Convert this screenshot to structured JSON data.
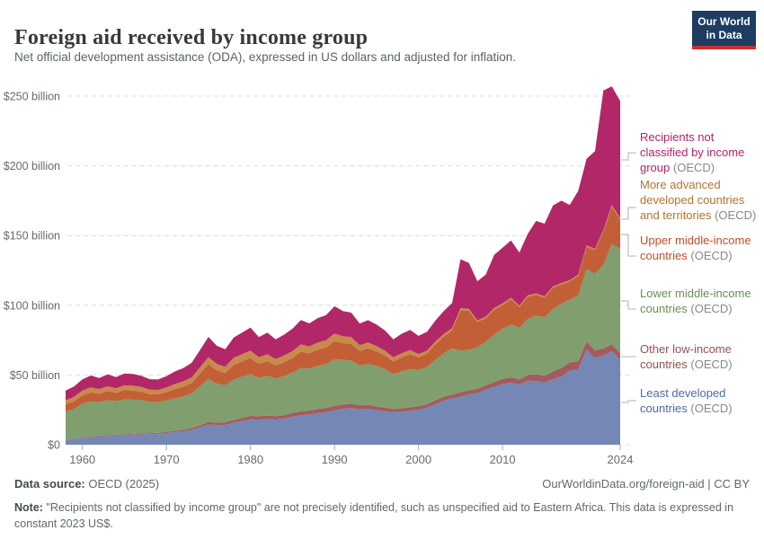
{
  "header": {
    "title": "Foreign aid received by income group",
    "subtitle": "Net official development assistance (ODA), expressed in US dollars and adjusted for inflation.",
    "logo": {
      "line1": "Our World",
      "line2": "in Data",
      "bg_color": "#1d3d63",
      "bar_color": "#d0302f"
    }
  },
  "chart_data": {
    "type": "area",
    "stacked": true,
    "grid": "dashed-horizontal",
    "x_range": [
      1958,
      2024
    ],
    "ylim": [
      0,
      250
    ],
    "yticks": [
      {
        "value": 0,
        "label": "$0"
      },
      {
        "value": 50,
        "label": "$50 billion"
      },
      {
        "value": 100,
        "label": "$100 billion"
      },
      {
        "value": 150,
        "label": "$150 billion"
      },
      {
        "value": 200,
        "label": "$200 billion"
      },
      {
        "value": 250,
        "label": "$250 billion"
      }
    ],
    "xticks": [
      {
        "year": 1960,
        "label": "1960"
      },
      {
        "year": 1970,
        "label": "1970"
      },
      {
        "year": 1980,
        "label": "1980"
      },
      {
        "year": 1990,
        "label": "1990"
      },
      {
        "year": 2000,
        "label": "2000"
      },
      {
        "year": 2010,
        "label": "2010"
      },
      {
        "year": 2024,
        "label": "2024"
      }
    ],
    "years": [
      1958,
      1959,
      1960,
      1961,
      1962,
      1963,
      1964,
      1965,
      1966,
      1967,
      1968,
      1969,
      1970,
      1971,
      1972,
      1973,
      1974,
      1975,
      1976,
      1977,
      1978,
      1979,
      1980,
      1981,
      1982,
      1983,
      1984,
      1985,
      1986,
      1987,
      1988,
      1989,
      1990,
      1991,
      1992,
      1993,
      1994,
      1995,
      1996,
      1997,
      1998,
      1999,
      2000,
      2001,
      2002,
      2003,
      2004,
      2005,
      2006,
      2007,
      2008,
      2009,
      2010,
      2011,
      2012,
      2013,
      2014,
      2015,
      2016,
      2017,
      2018,
      2019,
      2020,
      2021,
      2022,
      2023,
      2024
    ],
    "unit": "billion US$ (constant 2023)",
    "series": [
      {
        "key": "least-developed",
        "name": "Least developed countries",
        "color": "#7487b5",
        "values": [
          3.5,
          4.2,
          5,
          5.6,
          6,
          6.4,
          6.6,
          7,
          7.2,
          7.5,
          7.6,
          7.9,
          8.4,
          9,
          9.6,
          10.5,
          12.5,
          14.5,
          14,
          14.2,
          15.8,
          17,
          18.2,
          18,
          18.4,
          18,
          18.6,
          20,
          21.2,
          21.6,
          22.6,
          23.2,
          24.6,
          25.6,
          26.2,
          25.2,
          25.6,
          24.6,
          24,
          23.2,
          23.6,
          24.2,
          25,
          26.5,
          29,
          31.5,
          33,
          34.5,
          36,
          37,
          39.5,
          41.5,
          43.5,
          44.5,
          43,
          46,
          45.5,
          44.5,
          47,
          49,
          53,
          54,
          68,
          62,
          64,
          67,
          61
        ]
      },
      {
        "key": "other-low-income",
        "name": "Other low-income countries",
        "color": "#a35c5e",
        "values": [
          0.3,
          0.3,
          0.4,
          0.4,
          0.5,
          0.5,
          0.5,
          0.6,
          0.6,
          0.6,
          0.7,
          0.7,
          0.8,
          0.9,
          1,
          1.2,
          1.5,
          1.8,
          1.8,
          1.8,
          2,
          2.2,
          2.4,
          2.4,
          2.5,
          2.4,
          2.5,
          2.7,
          2.8,
          2.9,
          3,
          3,
          3.2,
          3.2,
          3.2,
          3,
          3,
          2.8,
          2.6,
          2.4,
          2.5,
          2.6,
          2.6,
          2.7,
          2.9,
          3,
          3,
          3,
          3,
          3,
          3.2,
          3.4,
          3.6,
          3.8,
          3.8,
          4.2,
          5,
          5,
          5.5,
          6,
          6,
          6,
          6,
          5.5,
          5,
          5,
          4.5
        ]
      },
      {
        "key": "lower-middle-income",
        "name": "Lower middle-income countries",
        "color": "#809e6e",
        "values": [
          20,
          21,
          24,
          25,
          24,
          25,
          24,
          25,
          24.5,
          24,
          22.5,
          22,
          22.5,
          23.5,
          24,
          25,
          28,
          31,
          28,
          26.5,
          29,
          29.5,
          30,
          27.5,
          28.5,
          27,
          28,
          29,
          31,
          30,
          31,
          31.5,
          33.5,
          32,
          31,
          28.5,
          29.5,
          29,
          27.5,
          25,
          26.5,
          27.5,
          26,
          26.5,
          29,
          31,
          33,
          30,
          29,
          30,
          31,
          34,
          36,
          38,
          37,
          40,
          42,
          42,
          45,
          46,
          45,
          47,
          52,
          55,
          60,
          72,
          75
        ]
      },
      {
        "key": "upper-middle-income",
        "name": "Upper middle-income countries",
        "color": "#c25f36",
        "values": [
          5,
          5.5,
          6,
          6.5,
          6,
          6.5,
          6,
          6.5,
          6.5,
          6,
          5.5,
          5.5,
          6,
          6.5,
          7,
          7.5,
          9,
          10.5,
          9.5,
          9,
          10.5,
          11,
          11.5,
          10,
          10.5,
          9.5,
          10,
          10.5,
          11.5,
          11,
          11.5,
          12,
          13,
          12,
          12,
          10.5,
          11,
          10.5,
          10,
          9,
          10,
          10.5,
          9,
          9.5,
          11,
          12,
          13,
          29,
          28,
          18,
          17,
          18,
          17,
          18,
          15,
          16,
          15,
          14,
          15,
          14,
          13,
          14,
          16,
          17,
          24,
          27,
          21
        ]
      },
      {
        "key": "more-advanced",
        "name": "More advanced developed countries and territories",
        "color": "#c88a4a",
        "values": [
          3,
          3.2,
          3.5,
          3.6,
          3.4,
          3.5,
          3.4,
          3.5,
          3.5,
          3.4,
          3.2,
          3.2,
          3.4,
          3.6,
          3.8,
          4,
          4.5,
          5,
          4.6,
          4.4,
          5,
          5.2,
          5.4,
          4.8,
          5,
          4.6,
          4.8,
          5,
          5.4,
          5,
          5.2,
          5.2,
          5.5,
          5,
          4.8,
          4.2,
          4.2,
          3.8,
          3.4,
          3,
          3,
          3,
          2.4,
          2.2,
          2,
          1.8,
          1.6,
          1.5,
          1.4,
          1.2,
          1.2,
          1.2,
          1.2,
          1.2,
          1,
          1,
          1,
          1,
          1,
          1,
          1,
          1,
          1,
          1,
          1,
          1,
          1
        ]
      },
      {
        "key": "not-classified",
        "name": "Recipients not classified by income group",
        "color": "#b22767",
        "values": [
          7,
          7.5,
          8,
          8.5,
          8,
          8.5,
          8,
          8.5,
          8.5,
          8,
          7.5,
          7.5,
          8,
          9,
          9.5,
          10.5,
          12.5,
          14.5,
          13,
          12.5,
          14.5,
          15.5,
          16.5,
          14.5,
          15.5,
          14,
          15,
          16,
          17.5,
          16.5,
          17.5,
          18,
          19.5,
          18,
          17.5,
          15.5,
          16,
          15.5,
          14.5,
          13,
          14,
          14.5,
          13,
          13.5,
          15,
          16.5,
          18,
          35,
          33,
          28,
          30,
          38,
          40,
          41,
          38,
          44,
          52,
          52,
          58,
          59,
          54,
          60,
          62,
          70,
          100,
          85,
          84
        ]
      }
    ]
  },
  "legend": [
    {
      "label": "Recipients not classified by income group",
      "suffix": "(OECD)",
      "color": "#b02469"
    },
    {
      "label": "More advanced developed countries and territories",
      "suffix": "(OECD)",
      "color": "#b5722b"
    },
    {
      "label": "Upper middle-income countries",
      "suffix": "(OECD)",
      "color": "#c34e27"
    },
    {
      "label": "Lower middle-income countries",
      "suffix": "(OECD)",
      "color": "#6a8f53"
    },
    {
      "label": "Other low-income countries",
      "suffix": "(OECD)",
      "color": "#9c4f50"
    },
    {
      "label": "Least developed countries",
      "suffix": "(OECD)",
      "color": "#496ba5"
    }
  ],
  "footer": {
    "source_label": "Data source:",
    "source_value": " OECD (2025)",
    "credit": "OurWorldinData.org/foreign-aid | CC BY",
    "note_label": "Note:",
    "note_text": " \"Recipients not classified by income group\" are not precisely identified, such as unspecified aid to Eastern Africa. This data is expressed in constant 2023 US$."
  }
}
